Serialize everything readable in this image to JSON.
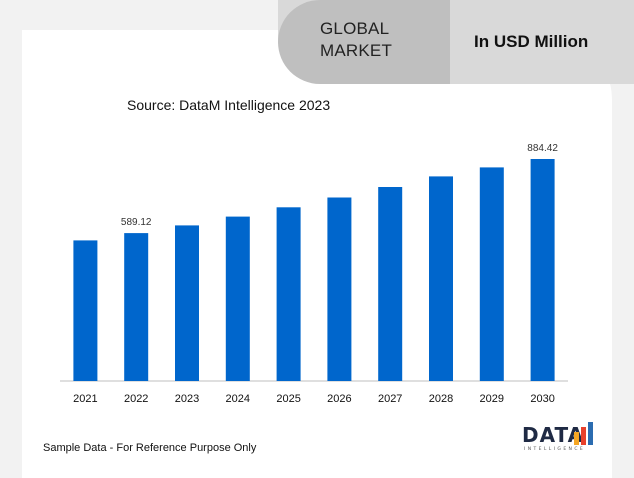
{
  "header": {
    "market_title": "GLOBAL MARKET",
    "unit_label": "In USD Million"
  },
  "source_text": "Source: DataM Intelligence 2023",
  "footer_note": "Sample Data - For Reference Purpose Only",
  "logo": {
    "word": "DATA",
    "subtext": "INTELLIGENCE",
    "colors": [
      "#1f2a44",
      "#f5a623",
      "#e8412c",
      "#2b6cb0"
    ]
  },
  "colors": {
    "bar": "#0066cc",
    "page_background": "#f2f2f2",
    "tab": "#d9d9d9",
    "tab_dark": "#bfbfbf"
  },
  "chart_data": {
    "type": "bar",
    "categories": [
      "2021",
      "2022",
      "2023",
      "2024",
      "2025",
      "2026",
      "2027",
      "2028",
      "2029",
      "2030"
    ],
    "values": [
      560,
      589.12,
      620,
      655,
      692,
      731,
      773,
      815,
      851,
      884.42
    ],
    "data_labels": [
      null,
      "589.12",
      null,
      null,
      null,
      null,
      null,
      null,
      null,
      "884.42"
    ],
    "ylim": [
      0,
      1000
    ],
    "grid": false,
    "title": "",
    "xlabel": "",
    "ylabel": ""
  }
}
